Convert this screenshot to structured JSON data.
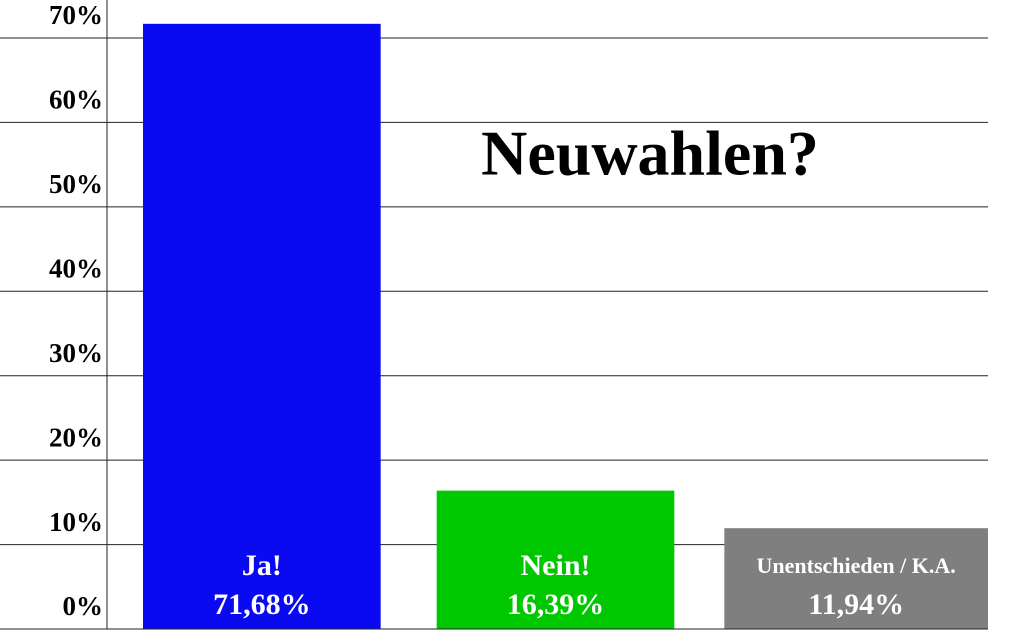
{
  "chart_data": {
    "type": "bar",
    "title": "Neuwahlen?",
    "categories": [
      "Ja!",
      "Nein!",
      "Unentschieden / K.A."
    ],
    "values": [
      71.68,
      16.39,
      11.94
    ],
    "value_labels": [
      "71,68%",
      "16,39%",
      "11,94%"
    ],
    "colors": [
      "#0a0af2",
      "#00c800",
      "#7f7f7f"
    ],
    "ylim": [
      0,
      70
    ],
    "yticks": [
      {
        "value": 0,
        "label": "0%"
      },
      {
        "value": 10,
        "label": "10%"
      },
      {
        "value": 20,
        "label": "20%"
      },
      {
        "value": 30,
        "label": "30%"
      },
      {
        "value": 40,
        "label": "40%"
      },
      {
        "value": 50,
        "label": "50%"
      },
      {
        "value": 60,
        "label": "60%"
      },
      {
        "value": 70,
        "label": "70%"
      }
    ],
    "grid": true
  }
}
